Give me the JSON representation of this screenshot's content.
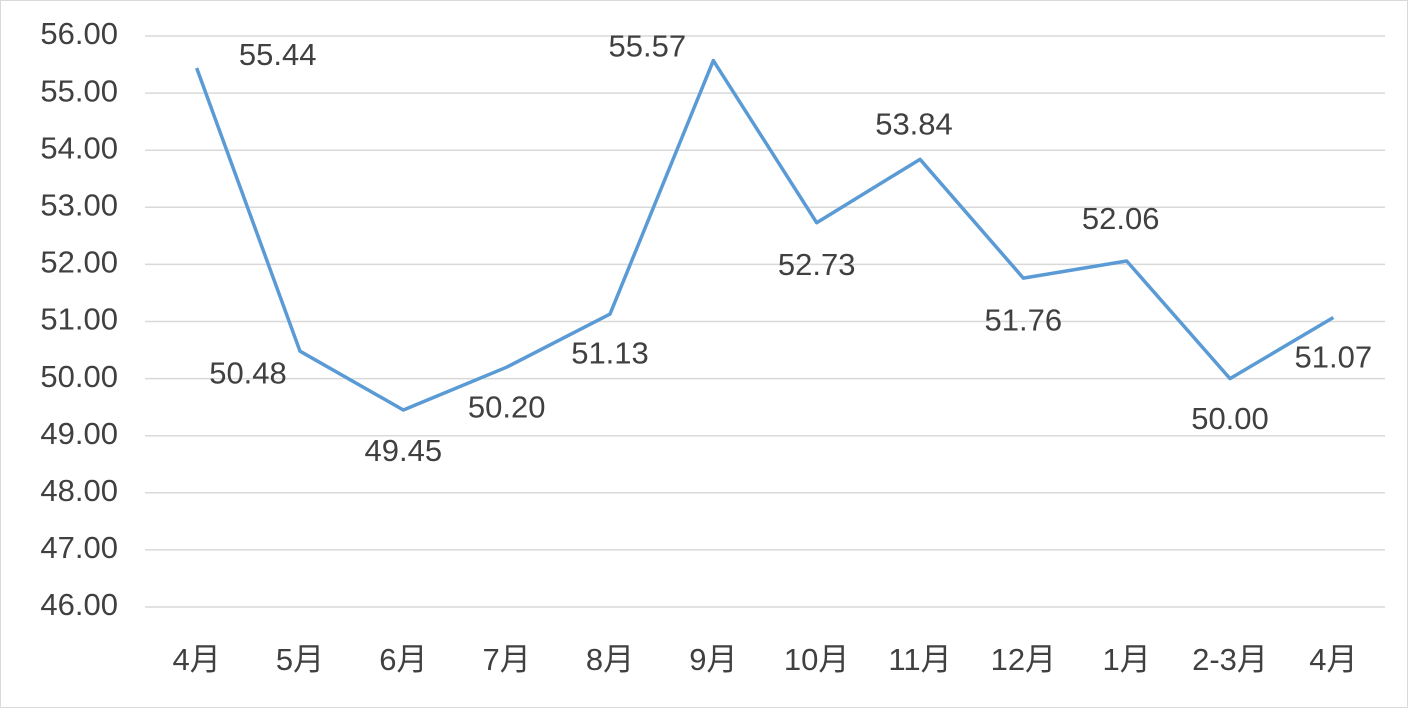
{
  "chart_data": {
    "type": "line",
    "categories": [
      "4月",
      "5月",
      "6月",
      "7月",
      "8月",
      "9月",
      "10月",
      "11月",
      "12月",
      "1月",
      "2-3月",
      "4月"
    ],
    "series": [
      {
        "color": "#5b9bd5",
        "values": [
          55.44,
          50.48,
          49.45,
          50.2,
          51.13,
          55.57,
          52.73,
          53.84,
          51.76,
          52.06,
          50,
          51.07
        ],
        "value_labels": [
          "55.44",
          "50.48",
          "49.45",
          "50.20",
          "51.13",
          "55.57",
          "52.73",
          "53.84",
          "51.76",
          "52.06",
          "50.00",
          "51.07"
        ]
      }
    ],
    "ylim": [
      46,
      56
    ],
    "yticks": [
      {
        "value": 46,
        "label": "46.00"
      },
      {
        "value": 47,
        "label": "47.00"
      },
      {
        "value": 48,
        "label": "48.00"
      },
      {
        "value": 49,
        "label": "49.00"
      },
      {
        "value": 50,
        "label": "50.00"
      },
      {
        "value": 51,
        "label": "51.00"
      },
      {
        "value": 52,
        "label": "52.00"
      },
      {
        "value": 53,
        "label": "53.00"
      },
      {
        "value": 54,
        "label": "54.00"
      },
      {
        "value": 55,
        "label": "55.00"
      },
      {
        "value": 56,
        "label": "56.00"
      }
    ],
    "grid": true
  }
}
